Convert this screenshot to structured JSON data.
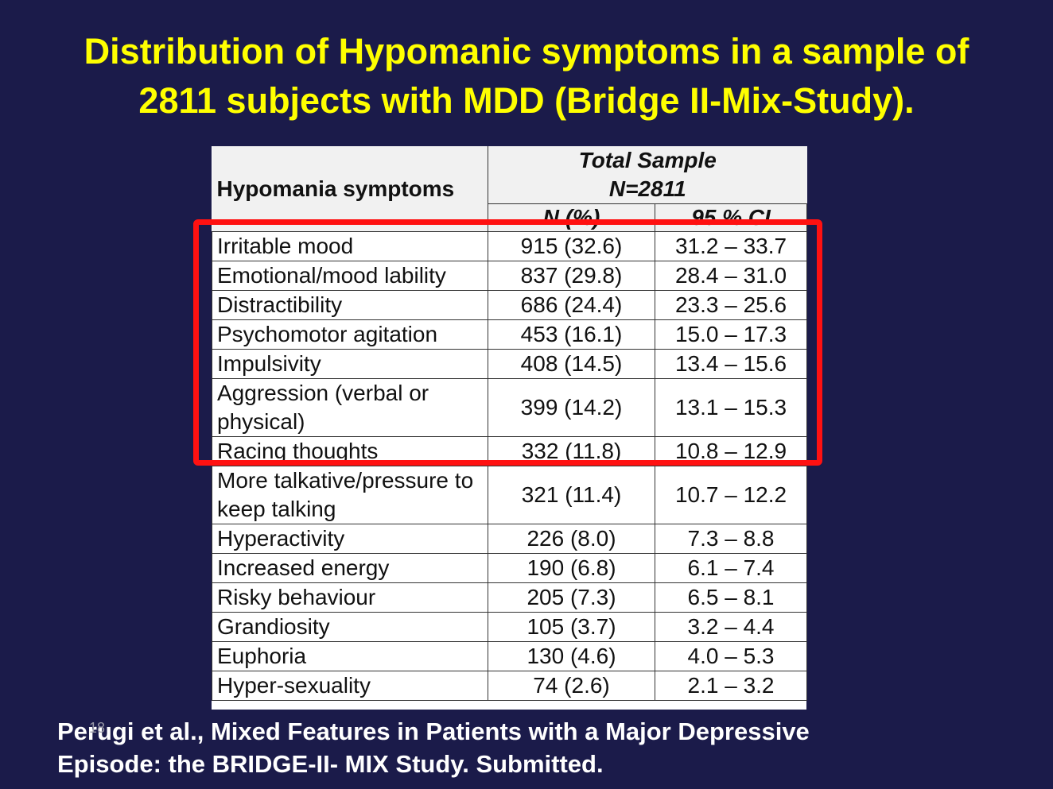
{
  "slide": {
    "title_line1": "Distribution of Hypomanic symptoms in a sample of",
    "title_line2": "2811 subjects with MDD (Bridge II-Mix-Study).",
    "slide_number": "18",
    "citation_line1": "Perugi et al., Mixed Features in Patients with a Major Depressive",
    "citation_line2": "Episode: the BRIDGE-II- MIX Study. Submitted.",
    "highlight_color": "#ff1111",
    "background_color": "#1b1b4a",
    "title_color": "#ffff00"
  },
  "table": {
    "header_symptoms": "Hypomania symptoms",
    "header_total_line1": "Total Sample",
    "header_total_line2": "N=2811",
    "header_n": "N (%)",
    "header_ci": "95 % CI",
    "rows": [
      {
        "symptom": "Irritable mood",
        "n": "915 (32.6)",
        "ci": "31.2 – 33.7"
      },
      {
        "symptom": "Emotional/mood lability",
        "n": "837 (29.8)",
        "ci": "28.4 – 31.0"
      },
      {
        "symptom": "Distractibility",
        "n": "686 (24.4)",
        "ci": "23.3 – 25.6"
      },
      {
        "symptom": "Psychomotor agitation",
        "n": "453 (16.1)",
        "ci": "15.0 – 17.3"
      },
      {
        "symptom": "Impulsivity",
        "n": "408 (14.5)",
        "ci": "13.4 – 15.6"
      },
      {
        "symptom": "Aggression (verbal or physical)",
        "n": "399 (14.2)",
        "ci": "13.1 – 15.3"
      },
      {
        "symptom": "Racing thoughts",
        "n": "332 (11.8)",
        "ci": "10.8 – 12.9"
      },
      {
        "symptom": "More talkative/pressure to keep talking",
        "n": "321 (11.4)",
        "ci": "10.7 – 12.2"
      },
      {
        "symptom": "Hyperactivity",
        "n": "226 (8.0)",
        "ci": "7.3 – 8.8"
      },
      {
        "symptom": "Increased energy",
        "n": "190 (6.8)",
        "ci": "6.1 – 7.4"
      },
      {
        "symptom": "Risky behaviour",
        "n": "205 (7.3)",
        "ci": "6.5 – 8.1"
      },
      {
        "symptom": "Grandiosity",
        "n": "105 (3.7)",
        "ci": "3.2 – 4.4"
      },
      {
        "symptom": "Euphoria",
        "n": "130 (4.6)",
        "ci": "4.0 – 5.3"
      },
      {
        "symptom": "Hyper-sexuality",
        "n": "74 (2.6)",
        "ci": "2.1 – 3.2"
      }
    ]
  }
}
